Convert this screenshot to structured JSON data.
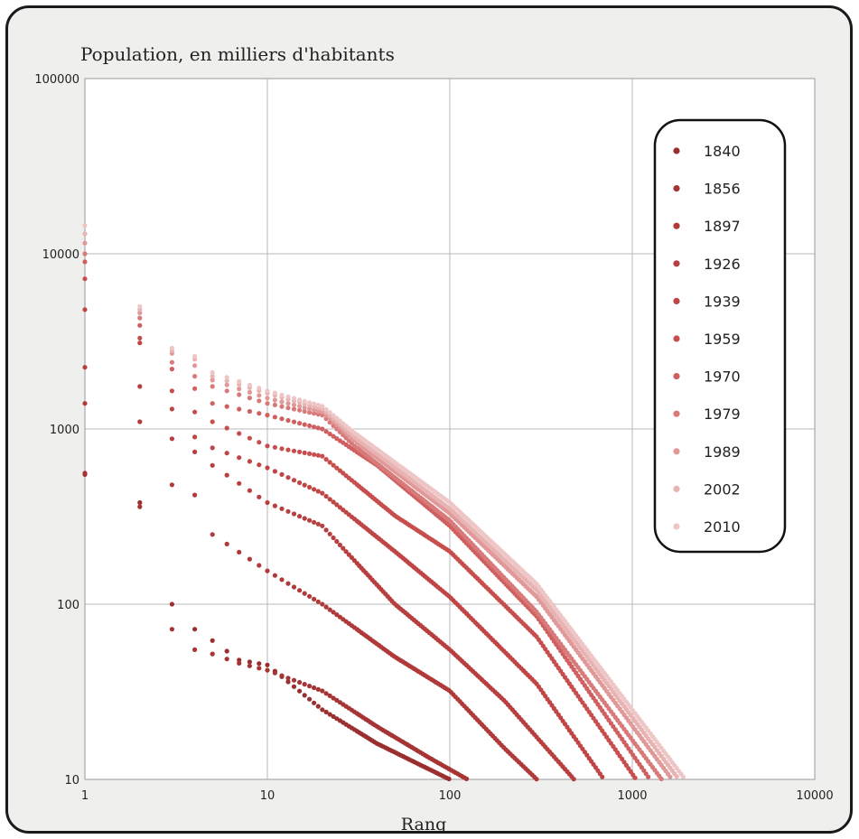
{
  "chart_data": {
    "type": "scatter",
    "title": "Population, en milliers d'habitants",
    "xlabel": "Rang",
    "ylabel": "",
    "xscale": "log",
    "yscale": "log",
    "xlim": [
      1,
      10000
    ],
    "ylim": [
      10,
      100000
    ],
    "x_ticks": [
      "1",
      "10",
      "100",
      "1000",
      "10000"
    ],
    "y_ticks": [
      "10",
      "100",
      "1000",
      "10000",
      "100000"
    ],
    "grid": true,
    "legend_position": "top-right",
    "series": [
      {
        "name": "1840",
        "color": "#9b2f2f",
        "top": 550,
        "shoulder": 1,
        "maxRank": 100,
        "x": [
          1,
          2,
          3,
          4,
          5,
          7,
          10,
          20,
          40,
          70,
          100
        ],
        "y": [
          550,
          380,
          100,
          72,
          62,
          48,
          45,
          25,
          16,
          12,
          10
        ]
      },
      {
        "name": "1856",
        "color": "#a63434",
        "top": 560,
        "shoulder": 1,
        "maxRank": 125,
        "x": [
          1,
          2,
          3,
          4,
          5,
          7,
          10,
          20,
          40,
          80,
          125
        ],
        "y": [
          560,
          360,
          72,
          55,
          52,
          46,
          42,
          32,
          20,
          13,
          10
        ]
      },
      {
        "name": "1897",
        "color": "#b03a3a",
        "top": 1400,
        "shoulder": 1,
        "maxRank": 300,
        "x": [
          1,
          2,
          3,
          4,
          5,
          10,
          20,
          50,
          100,
          200,
          300
        ],
        "y": [
          1400,
          1100,
          480,
          420,
          250,
          155,
          100,
          50,
          32,
          15,
          10
        ]
      },
      {
        "name": "1926",
        "color": "#b83f3f",
        "top": 2250,
        "shoulder": 1,
        "maxRank": 480,
        "x": [
          1,
          2,
          3,
          4,
          5,
          10,
          20,
          50,
          100,
          200,
          480
        ],
        "y": [
          2250,
          1750,
          880,
          740,
          620,
          380,
          280,
          100,
          55,
          28,
          10
        ]
      },
      {
        "name": "1939",
        "color": "#c04545",
        "top": 4800,
        "shoulder": 1,
        "maxRank": 700,
        "x": [
          1,
          2,
          3,
          4,
          5,
          10,
          20,
          50,
          100,
          300,
          700
        ],
        "y": [
          4800,
          3100,
          1300,
          900,
          780,
          600,
          430,
          200,
          110,
          35,
          10
        ]
      },
      {
        "name": "1959",
        "color": "#c84e4e",
        "top": 7200,
        "shoulder": 1,
        "maxRank": 1050,
        "x": [
          1,
          2,
          3,
          4,
          5,
          10,
          20,
          50,
          100,
          300,
          1050
        ],
        "y": [
          7200,
          3300,
          1650,
          1250,
          1100,
          800,
          700,
          320,
          200,
          65,
          10
        ]
      },
      {
        "name": "1970",
        "color": "#d06060",
        "top": 9000,
        "shoulder": 1,
        "maxRank": 1250,
        "x": [
          1,
          2,
          3,
          4,
          5,
          10,
          20,
          40,
          100,
          300,
          1250
        ],
        "y": [
          9000,
          3900,
          2200,
          1700,
          1400,
          1200,
          1000,
          620,
          280,
          85,
          10
        ]
      },
      {
        "name": "1979",
        "color": "#d87a7a",
        "top": 10000,
        "shoulder": 1,
        "maxRank": 1450,
        "x": [
          1,
          2,
          3,
          4,
          5,
          10,
          20,
          30,
          100,
          300,
          1450
        ],
        "y": [
          10000,
          4300,
          2400,
          2000,
          1750,
          1400,
          1200,
          800,
          300,
          90,
          10
        ]
      },
      {
        "name": "1989",
        "color": "#e09898",
        "top": 11500,
        "shoulder": 1,
        "maxRank": 1650,
        "x": [
          1,
          2,
          3,
          4,
          5,
          10,
          20,
          30,
          100,
          300,
          1650
        ],
        "y": [
          11500,
          4600,
          2700,
          2300,
          1900,
          1500,
          1250,
          860,
          330,
          110,
          10
        ]
      },
      {
        "name": "2002",
        "color": "#e8b3b3",
        "top": 13000,
        "shoulder": 1,
        "maxRank": 1800,
        "x": [
          1,
          2,
          3,
          4,
          5,
          10,
          20,
          30,
          100,
          300,
          1800
        ],
        "y": [
          13000,
          4800,
          2800,
          2500,
          2000,
          1600,
          1300,
          900,
          350,
          120,
          10
        ]
      },
      {
        "name": "2010",
        "color": "#efc6c6",
        "top": 14500,
        "shoulder": 1,
        "maxRank": 1950,
        "x": [
          1,
          2,
          3,
          4,
          5,
          10,
          20,
          30,
          100,
          300,
          1950
        ],
        "y": [
          14500,
          5000,
          2900,
          2600,
          2100,
          1650,
          1350,
          950,
          380,
          130,
          10
        ]
      }
    ]
  }
}
